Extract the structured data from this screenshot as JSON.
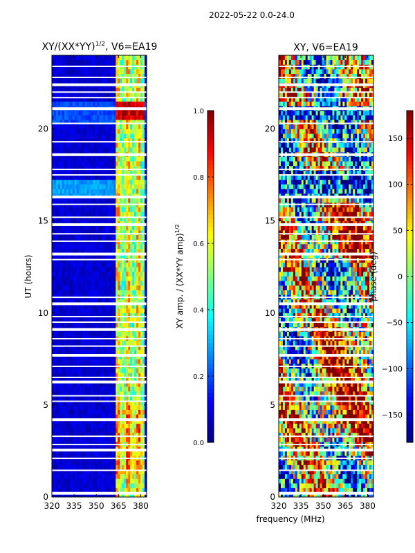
{
  "figure": {
    "suptitle": "2022-05-22 0.0-24.0"
  },
  "chart_data": [
    {
      "type": "heatmap",
      "title_main": "XY/(XX*YY)",
      "title_exp": "1/2",
      "title_tail": ", V6=EA19",
      "xlabel": "",
      "ylabel": "UT (hours)",
      "xlim": [
        320,
        384
      ],
      "ylim": [
        0,
        24
      ],
      "xticks": [
        320,
        335,
        350,
        365,
        380
      ],
      "yticks": [
        0,
        5,
        10,
        15,
        20
      ],
      "colorbar": {
        "label_main": "XY amp. / (XX*YY amp)",
        "label_exp": "1/2",
        "range": [
          0.0,
          1.0
        ],
        "ticks": [
          "0.0",
          "0.2",
          "0.4",
          "0.6",
          "0.8",
          "1.0"
        ],
        "colormap": "jet"
      },
      "gaps_hours": [
        0.2,
        1.45,
        2.1,
        2.55,
        2.85,
        3.3,
        4.2,
        5.2,
        5.5,
        6.25,
        6.5,
        7.1,
        7.7,
        8.2,
        8.6,
        9.1,
        9.5,
        9.8,
        10.5,
        10.85,
        12.9,
        13.2,
        13.9,
        14.3,
        14.8,
        15.2,
        15.9,
        16.3,
        17.5,
        17.8,
        18.6,
        19.3,
        20.3,
        21.1,
        21.7,
        22.0,
        22.4,
        22.8,
        23.4
      ],
      "band_mhz": [
        363,
        382
      ],
      "summary": "amplitude low (~0.05) across band except 363-382 MHz (~0.5-0.7); peak ~1.0 near 21 h"
    },
    {
      "type": "heatmap",
      "title": "XY, V6=EA19",
      "xlabel": "frequency (MHz)",
      "ylabel": "",
      "xlim": [
        320,
        384
      ],
      "ylim": [
        0,
        24
      ],
      "xticks": [
        320,
        335,
        350,
        365,
        380
      ],
      "yticks": [
        0,
        5,
        10,
        15,
        20
      ],
      "colorbar": {
        "label": "phase (deg)",
        "range": [
          -180,
          180
        ],
        "ticks": [
          "150",
          "100",
          "50",
          "0",
          "−50",
          "−100",
          "−150"
        ],
        "tick_values": [
          150,
          100,
          50,
          0,
          -50,
          -100,
          -150
        ],
        "colormap": "jet"
      },
      "gaps_hours": [
        0.2,
        1.45,
        2.1,
        2.55,
        2.85,
        3.3,
        4.2,
        5.2,
        5.5,
        6.25,
        6.5,
        7.1,
        7.7,
        8.2,
        8.6,
        9.1,
        9.5,
        9.8,
        10.5,
        10.85,
        12.9,
        13.2,
        13.9,
        14.3,
        14.8,
        15.2,
        15.9,
        16.3,
        17.5,
        17.8,
        18.6,
        19.3,
        20.3,
        21.1,
        21.7,
        22.0,
        22.4,
        22.8,
        23.4
      ],
      "summary": "noisy phase spanning -180 to 180 deg; strong red/orange patches 3-9 h and 13-16 h"
    }
  ]
}
